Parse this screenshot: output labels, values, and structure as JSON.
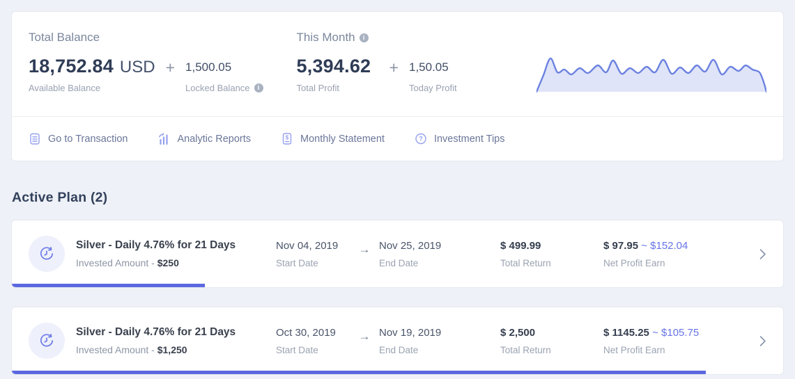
{
  "summary": {
    "total_balance": {
      "title": "Total Balance",
      "amount": "18,752.84",
      "currency": "USD",
      "amount_label": "Available Balance",
      "plus": "+",
      "locked_amount": "1,500.05",
      "locked_label": "Locked Balance"
    },
    "this_month": {
      "title": "This Month",
      "amount": "5,394.62",
      "amount_label": "Total Profit",
      "plus": "+",
      "today_amount": "1,50.05",
      "today_label": "Today Profit"
    }
  },
  "quick_links": [
    {
      "label": "Go to Transaction",
      "icon": "transaction-list-icon"
    },
    {
      "label": "Analytic Reports",
      "icon": "bar-chart-icon"
    },
    {
      "label": "Monthly Statement",
      "icon": "statement-icon"
    },
    {
      "label": "Investment Tips",
      "icon": "help-circle-icon"
    }
  ],
  "active_plan": {
    "heading": "Active Plan (2)",
    "arrow": "→"
  },
  "plans": [
    {
      "title": "Silver - Daily 4.76% for 21 Days",
      "invested_label": "Invested Amount - ",
      "invested_amount": "$250",
      "start_date": "Nov 04, 2019",
      "start_date_label": "Start Date",
      "end_date": "Nov 25, 2019",
      "end_date_label": "End Date",
      "total_return": "$ 499.99",
      "total_return_label": "Total Return",
      "net_profit": "$ 97.95 ",
      "net_profit_projected": "~ $152.04",
      "net_profit_label": "Net Profit Earn",
      "progress_pct": 25
    },
    {
      "title": "Silver - Daily 4.76% for 21 Days",
      "invested_label": "Invested Amount - ",
      "invested_amount": "$1,250",
      "start_date": "Oct 30, 2019",
      "start_date_label": "Start Date",
      "end_date": "Nov 19, 2019",
      "end_date_label": "End Date",
      "total_return": "$ 2,500",
      "total_return_label": "Total Return",
      "net_profit": "$ 1145.25 ",
      "net_profit_projected": "~ $105.75",
      "net_profit_label": "Net Profit Earn",
      "progress_pct": 90
    }
  ],
  "colors": {
    "accent": "#5b68e0",
    "icon_indigo": "#95a0ee",
    "spark_line": "#6c82e0",
    "spark_fill_opacity": 0.22
  },
  "chart_data": {
    "type": "area",
    "title": "profit sparkline",
    "points": [
      [
        0,
        58
      ],
      [
        10,
        34
      ],
      [
        20,
        10
      ],
      [
        30,
        30
      ],
      [
        40,
        26
      ],
      [
        50,
        33
      ],
      [
        62,
        24
      ],
      [
        74,
        31
      ],
      [
        88,
        20
      ],
      [
        100,
        30
      ],
      [
        110,
        13
      ],
      [
        122,
        32
      ],
      [
        134,
        24
      ],
      [
        146,
        31
      ],
      [
        158,
        22
      ],
      [
        170,
        30
      ],
      [
        182,
        12
      ],
      [
        194,
        32
      ],
      [
        206,
        23
      ],
      [
        218,
        31
      ],
      [
        230,
        20
      ],
      [
        242,
        29
      ],
      [
        254,
        12
      ],
      [
        266,
        33
      ],
      [
        278,
        22
      ],
      [
        290,
        28
      ],
      [
        300,
        20
      ],
      [
        310,
        26
      ],
      [
        320,
        30
      ],
      [
        326,
        44
      ],
      [
        330,
        58
      ]
    ],
    "xlim": [
      0,
      330
    ],
    "ylim": [
      0,
      60
    ]
  }
}
